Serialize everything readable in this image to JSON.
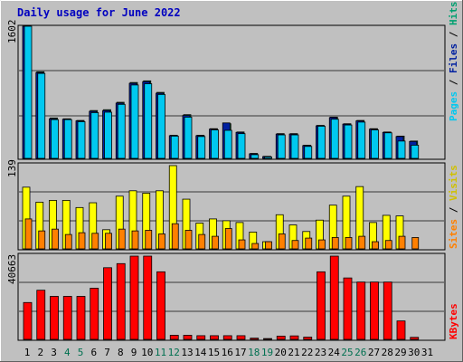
{
  "chart_data": {
    "type": "bar",
    "title": "Daily usage for June 2022",
    "days": [
      "1",
      "2",
      "3",
      "4",
      "5",
      "6",
      "7",
      "8",
      "9",
      "10",
      "11",
      "12",
      "13",
      "14",
      "15",
      "16",
      "17",
      "18",
      "19",
      "20",
      "21",
      "22",
      "23",
      "24",
      "25",
      "26",
      "27",
      "28",
      "29",
      "30",
      "31"
    ],
    "weekend_days": [
      "4",
      "5",
      "11",
      "12",
      "18",
      "19",
      "25",
      "26"
    ],
    "colors": {
      "weekday_label": "#000000",
      "weekend_label": "#007050",
      "hits": "#00a070",
      "files": "#0020a0",
      "pages": "#00c8f0",
      "visits": "#ffff00",
      "sites": "#ff8000",
      "kbytes": "#ff0000",
      "panel_bg": "#c0c0c0",
      "title": "#0000c0"
    },
    "panels": [
      {
        "id": "hits-files-pages",
        "max_label": "1602",
        "ymax": 1602,
        "series": [
          {
            "name": "Hits",
            "values": [
              1602,
              1050,
              490,
              480,
              460,
              580,
              590,
              680,
              920,
              940,
              800,
              280,
              530,
              280,
              360,
              420,
              320,
              60,
              25,
              300,
              300,
              160,
              400,
              500,
              420,
              460,
              360,
              320,
              270,
              210,
              0
            ]
          },
          {
            "name": "Files",
            "values": [
              1602,
              1040,
              480,
              475,
              455,
              570,
              580,
              670,
              910,
              930,
              790,
              275,
              520,
              275,
              355,
              430,
              315,
              55,
              22,
              295,
              295,
              155,
              395,
              495,
              415,
              455,
              355,
              315,
              265,
              205,
              0
            ]
          },
          {
            "name": "Pages",
            "values": [
              1602,
              1030,
              470,
              470,
              445,
              555,
              560,
              655,
              890,
              905,
              775,
              270,
              500,
              265,
              345,
              340,
              300,
              45,
              18,
              285,
              285,
              145,
              390,
              475,
              405,
              440,
              345,
              310,
              210,
              160,
              0
            ]
          }
        ]
      },
      {
        "id": "visits-sites",
        "max_label": "139",
        "ymax": 139,
        "series": [
          {
            "name": "Visits",
            "values": [
              103,
              78,
              81,
              81,
              69,
              77,
              32,
              88,
              97,
              93,
              97,
              139,
              83,
              43,
              50,
              47,
              44,
              28,
              12,
              57,
              40,
              29,
              48,
              73,
              88,
              104,
              44,
              56,
              55,
              0,
              0
            ]
          },
          {
            "name": "Sites",
            "values": [
              50,
              30,
              33,
              24,
              27,
              26,
              26,
              33,
              30,
              31,
              25,
              42,
              31,
              24,
              21,
              34,
              15,
              9,
              12,
              25,
              14,
              18,
              15,
              19,
              19,
              21,
              12,
              14,
              21,
              19,
              0
            ]
          }
        ]
      },
      {
        "id": "kbytes",
        "max_label": "40663",
        "ymax": 40663,
        "series": [
          {
            "name": "KBytes",
            "values": [
              18000,
              24000,
              21000,
              21000,
              21000,
              25000,
              35000,
              37000,
              40663,
              40663,
              33000,
              2000,
              2000,
              1800,
              1800,
              1800,
              1800,
              600,
              400,
              1600,
              1700,
              1100,
              33000,
              40663,
              30000,
              28000,
              28000,
              28000,
              9000,
              1000,
              0
            ]
          }
        ]
      }
    ],
    "side_labels": {
      "top": [
        "Pages",
        "Files",
        "Hits"
      ],
      "middle": [
        "Sites",
        "Visits"
      ],
      "bottom": [
        "KBytes"
      ]
    }
  }
}
